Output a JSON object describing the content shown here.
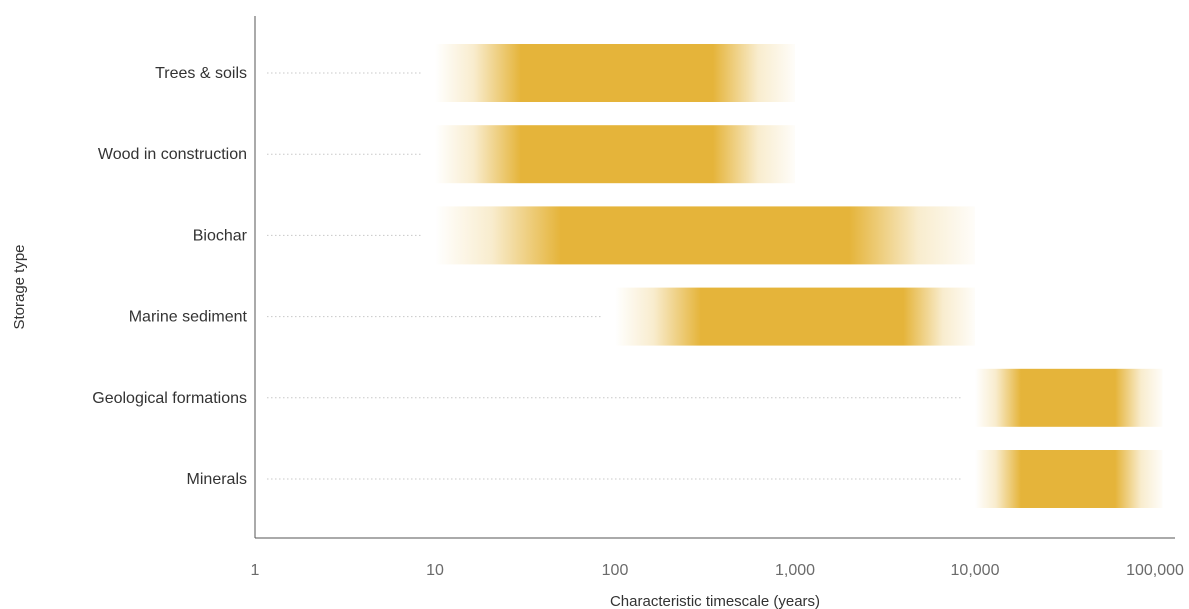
{
  "chart_data": {
    "type": "range-bar",
    "xlabel": "Characteristic timescale (years)",
    "ylabel": "Storage type",
    "x_scale": "log",
    "xlim": [
      1,
      120000
    ],
    "x_ticks": [
      1,
      10,
      100,
      1000,
      10000,
      100000
    ],
    "x_tick_labels": [
      "1",
      "10",
      "100",
      "1,000",
      "10,000",
      "100,000"
    ],
    "categories": [
      "Trees & soils",
      "Wood in construction",
      "Biochar",
      "Marine sediment",
      "Geological formations",
      "Minerals"
    ],
    "ranges": [
      {
        "category": "Trees & soils",
        "min": 10,
        "max": 1000,
        "core_min": 30,
        "core_max": 350
      },
      {
        "category": "Wood in construction",
        "min": 10,
        "max": 1000,
        "core_min": 30,
        "core_max": 350
      },
      {
        "category": "Biochar",
        "min": 10,
        "max": 10000,
        "core_min": 50,
        "core_max": 2000
      },
      {
        "category": "Marine sediment",
        "min": 100,
        "max": 10000,
        "core_min": 300,
        "core_max": 4000
      },
      {
        "category": "Geological formations",
        "min": 10000,
        "max": 110000,
        "core_min": 18000,
        "core_max": 60000
      },
      {
        "category": "Minerals",
        "min": 10000,
        "max": 110000,
        "core_min": 18000,
        "core_max": 60000
      }
    ],
    "bar_color": "#e5b43a",
    "grid": false
  }
}
